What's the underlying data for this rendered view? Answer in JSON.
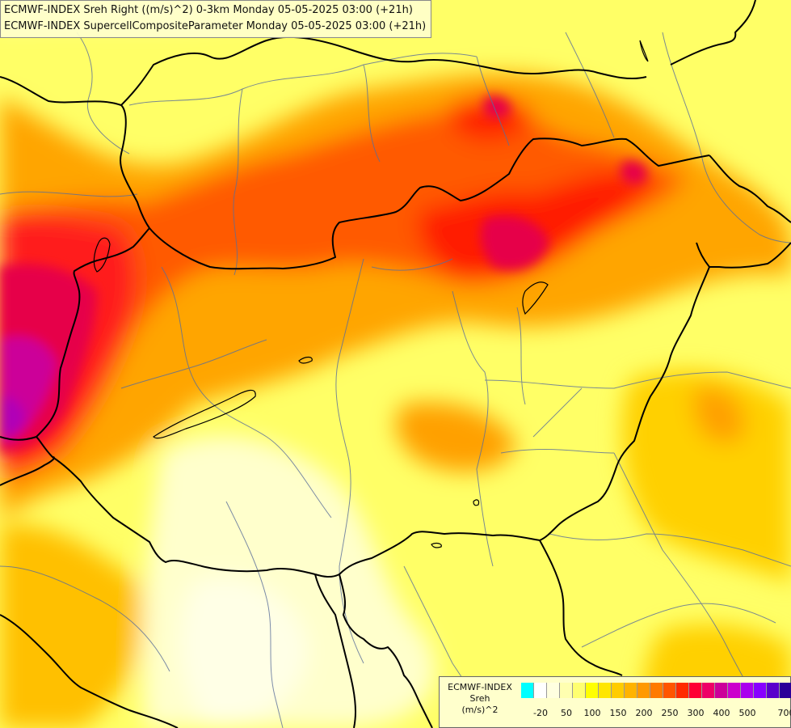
{
  "title": {
    "line1": "ECMWF-INDEX Sreh Right ((m/s)^2) 0-3km Monday 05-05-2025 03:00 (+21h)",
    "line2": "ECMWF-INDEX SupercellCompositeParameter Monday 05-05-2025 03:00 (+21h)"
  },
  "legend": {
    "line1": "ECMWF-INDEX",
    "line2": "Sreh",
    "line3": "(m/s)^2",
    "colors": [
      "#00ffff",
      "#ffffff",
      "#ffffe0",
      "#ffffb0",
      "#ffff70",
      "#ffff00",
      "#ffe600",
      "#ffcc00",
      "#ffb300",
      "#ff9900",
      "#ff7a00",
      "#ff5500",
      "#ff2a00",
      "#ff0033",
      "#ee0066",
      "#cc0099",
      "#cc00cc",
      "#aa00ee",
      "#8800ff",
      "#5a00cc",
      "#2a0099",
      "#000080"
    ],
    "ticks": [
      "-20",
      "50",
      "100",
      "150",
      "200",
      "250",
      "300",
      "400",
      "500",
      "700"
    ]
  },
  "colors": {
    "background": "#ffff99",
    "border_line": "#000000",
    "river_line": "#5a6e9a"
  }
}
